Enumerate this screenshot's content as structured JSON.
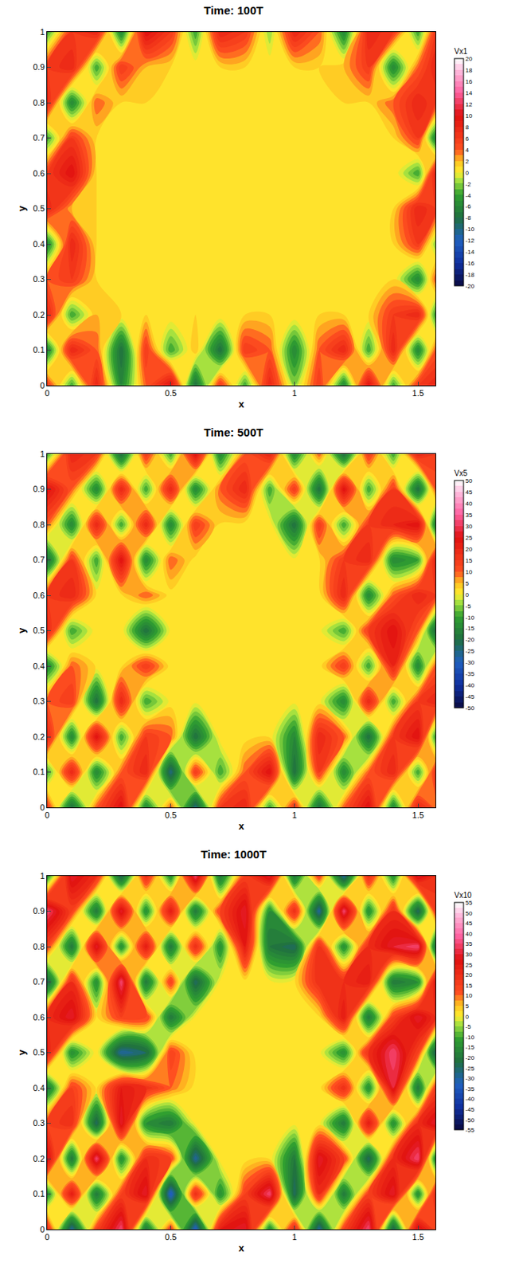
{
  "chart_data": [
    {
      "type": "contour",
      "title": "Time: 100T",
      "x_label": "x",
      "y_label": "y",
      "xlim": [
        0,
        1.57
      ],
      "ylim": [
        0,
        1
      ],
      "xticks": [
        0,
        0.5,
        1,
        1.5
      ],
      "yticks": [
        0,
        0.1,
        0.2,
        0.3,
        0.4,
        0.5,
        0.6,
        0.7,
        0.8,
        0.9,
        1
      ],
      "x": [
        0,
        0.1,
        0.2,
        0.3,
        0.4,
        0.5,
        0.6,
        0.7,
        0.8,
        0.9,
        1,
        1.1,
        1.2,
        1.3,
        1.4,
        1.5,
        1.57
      ],
      "y": [
        0,
        0.1,
        0.2,
        0.3,
        0.4,
        0.5,
        0.6,
        0.7,
        0.8,
        0.9,
        1
      ],
      "z": [
        [
          6,
          -4,
          8,
          -6,
          4,
          10,
          -8,
          6,
          -4,
          8,
          -2,
          6,
          -6,
          10,
          -4,
          6,
          8
        ],
        [
          -6,
          8,
          4,
          -8,
          6,
          -4,
          2,
          -8,
          6,
          4,
          -6,
          4,
          8,
          -4,
          8,
          -6,
          4
        ],
        [
          8,
          -4,
          2,
          1,
          1,
          1,
          1,
          1,
          1,
          1,
          1,
          1,
          1,
          1,
          6,
          8,
          -4
        ],
        [
          4,
          6,
          1,
          1,
          1,
          1,
          1,
          1,
          1,
          1,
          1,
          1,
          1,
          1,
          1,
          -6,
          4
        ],
        [
          -6,
          8,
          1,
          1,
          1,
          1,
          1,
          1,
          1,
          1,
          1,
          1,
          1,
          1,
          1,
          6,
          -2
        ],
        [
          8,
          2,
          1,
          1,
          1,
          1,
          1,
          1,
          1,
          1,
          1,
          1,
          1,
          1,
          1,
          8,
          6
        ],
        [
          6,
          10,
          1,
          1,
          1,
          1,
          1,
          1,
          1,
          1,
          1,
          1,
          1,
          1,
          1,
          -4,
          8
        ],
        [
          -4,
          6,
          1,
          1,
          1,
          1,
          1,
          1,
          1,
          1,
          1,
          1,
          1,
          1,
          1,
          6,
          -6
        ],
        [
          8,
          -6,
          4,
          1,
          1,
          1,
          1,
          1,
          1,
          1,
          1,
          1,
          1,
          1,
          4,
          8,
          6
        ],
        [
          6,
          8,
          -4,
          6,
          2,
          1,
          1,
          1,
          1,
          1,
          1,
          1,
          2,
          6,
          -6,
          4,
          8
        ],
        [
          -4,
          6,
          8,
          -6,
          10,
          6,
          -4,
          8,
          6,
          -2,
          8,
          4,
          -6,
          8,
          6,
          -4,
          6
        ]
      ],
      "colorbar": {
        "title": "Vx1",
        "range": [
          -20,
          20
        ],
        "ticks": [
          -20,
          -18,
          -16,
          -14,
          -12,
          -10,
          -8,
          -6,
          -4,
          -2,
          0,
          2,
          4,
          6,
          8,
          10,
          12,
          14,
          16,
          18,
          20
        ]
      }
    },
    {
      "type": "contour",
      "title": "Time: 500T",
      "x_label": "x",
      "y_label": "y",
      "xlim": [
        0,
        1.57
      ],
      "ylim": [
        0,
        1
      ],
      "xticks": [
        0,
        0.5,
        1,
        1.5
      ],
      "yticks": [
        0,
        0.1,
        0.2,
        0.3,
        0.4,
        0.5,
        0.6,
        0.7,
        0.8,
        0.9,
        1
      ],
      "x": [
        0,
        0.1,
        0.2,
        0.3,
        0.4,
        0.5,
        0.6,
        0.7,
        0.8,
        0.9,
        1,
        1.1,
        1.2,
        1.3,
        1.4,
        1.5,
        1.57
      ],
      "y": [
        0,
        0.1,
        0.2,
        0.3,
        0.4,
        0.5,
        0.6,
        0.7,
        0.8,
        0.9,
        1
      ],
      "z": [
        [
          15,
          -20,
          10,
          25,
          -15,
          10,
          -25,
          15,
          20,
          -10,
          15,
          -20,
          10,
          25,
          -15,
          20,
          10
        ],
        [
          -10,
          20,
          -15,
          10,
          20,
          -25,
          15,
          -10,
          10,
          25,
          -20,
          15,
          -15,
          10,
          20,
          -10,
          15
        ],
        [
          20,
          -15,
          25,
          -10,
          15,
          10,
          -20,
          2,
          1,
          2,
          -15,
          20,
          10,
          -20,
          15,
          25,
          -10
        ],
        [
          10,
          15,
          -20,
          20,
          -10,
          1,
          1,
          1,
          1,
          1,
          1,
          1,
          -15,
          20,
          -10,
          15,
          20
        ],
        [
          -15,
          10,
          2,
          2,
          15,
          1,
          1,
          1,
          1,
          1,
          1,
          1,
          15,
          -10,
          20,
          -15,
          10
        ],
        [
          20,
          -10,
          2,
          2,
          -20,
          1,
          1,
          1,
          1,
          1,
          1,
          1,
          -10,
          15,
          25,
          10,
          -20
        ],
        [
          15,
          20,
          2,
          2,
          10,
          1,
          1,
          1,
          1,
          1,
          1,
          1,
          20,
          -15,
          10,
          20,
          15
        ],
        [
          -20,
          15,
          -10,
          25,
          -15,
          10,
          1,
          1,
          1,
          1,
          1,
          2,
          15,
          20,
          -15,
          -10,
          20
        ],
        [
          10,
          -15,
          20,
          -10,
          20,
          -15,
          15,
          2,
          1,
          2,
          -20,
          15,
          -10,
          15,
          20,
          25,
          -15
        ],
        [
          25,
          10,
          -15,
          20,
          -10,
          20,
          -15,
          10,
          20,
          -10,
          15,
          -20,
          25,
          -10,
          15,
          -20,
          10
        ],
        [
          -10,
          20,
          15,
          -20,
          15,
          -10,
          25,
          -15,
          10,
          20,
          -15,
          10,
          -20,
          15,
          -10,
          20,
          15
        ]
      ],
      "colorbar": {
        "title": "Vx5",
        "range": [
          -50,
          50
        ],
        "ticks": [
          -50,
          -45,
          -40,
          -35,
          -30,
          -25,
          -20,
          -15,
          -10,
          -5,
          0,
          5,
          10,
          15,
          20,
          25,
          30,
          35,
          40,
          45,
          50
        ]
      }
    },
    {
      "type": "contour",
      "title": "Time: 1000T",
      "x_label": "x",
      "y_label": "y",
      "xlim": [
        0,
        1.57
      ],
      "ylim": [
        0,
        1
      ],
      "xticks": [
        0,
        0.5,
        1,
        1.5
      ],
      "yticks": [
        0,
        0.1,
        0.2,
        0.3,
        0.4,
        0.5,
        0.6,
        0.7,
        0.8,
        0.9,
        1
      ],
      "x": [
        0,
        0.1,
        0.2,
        0.3,
        0.4,
        0.5,
        0.6,
        0.7,
        0.8,
        0.9,
        1,
        1.1,
        1.2,
        1.3,
        1.4,
        1.5,
        1.57
      ],
      "y": [
        0,
        0.1,
        0.2,
        0.3,
        0.4,
        0.5,
        0.6,
        0.7,
        0.8,
        0.9,
        1
      ],
      "z": [
        [
          20,
          -30,
          15,
          35,
          -20,
          15,
          -35,
          25,
          30,
          -15,
          20,
          -30,
          15,
          35,
          -25,
          30,
          15
        ],
        [
          -15,
          25,
          -20,
          15,
          30,
          -35,
          20,
          -15,
          15,
          35,
          -25,
          20,
          -20,
          15,
          30,
          -15,
          20
        ],
        [
          30,
          -20,
          35,
          -15,
          20,
          15,
          -30,
          2,
          1,
          2,
          -20,
          30,
          15,
          -25,
          20,
          35,
          -15
        ],
        [
          15,
          20,
          -25,
          30,
          -15,
          -20,
          1,
          1,
          1,
          1,
          1,
          1,
          -20,
          25,
          -15,
          20,
          30
        ],
        [
          -20,
          15,
          2,
          25,
          20,
          10,
          1,
          1,
          1,
          1,
          1,
          1,
          20,
          -15,
          30,
          -20,
          15
        ],
        [
          25,
          -15,
          2,
          -30,
          -25,
          15,
          1,
          1,
          1,
          1,
          1,
          1,
          -15,
          20,
          35,
          15,
          -25
        ],
        [
          20,
          30,
          2,
          15,
          15,
          -20,
          1,
          1,
          1,
          1,
          1,
          2,
          25,
          -20,
          15,
          30,
          20
        ],
        [
          -25,
          20,
          -15,
          35,
          -20,
          15,
          -25,
          1,
          1,
          1,
          2,
          20,
          20,
          25,
          -20,
          -15,
          25
        ],
        [
          15,
          -20,
          30,
          -15,
          25,
          -20,
          20,
          -15,
          25,
          -20,
          -25,
          20,
          -15,
          20,
          30,
          35,
          -20
        ],
        [
          35,
          15,
          -20,
          30,
          -15,
          25,
          -20,
          15,
          30,
          -15,
          20,
          -30,
          35,
          -15,
          20,
          -25,
          15
        ],
        [
          -15,
          30,
          20,
          -25,
          20,
          -15,
          35,
          -20,
          15,
          30,
          -20,
          15,
          -30,
          20,
          -15,
          30,
          20
        ]
      ],
      "colorbar": {
        "title": "Vx10",
        "range": [
          -55,
          55
        ],
        "ticks": [
          -55,
          -50,
          -45,
          -40,
          -35,
          -30,
          -25,
          -20,
          -15,
          -10,
          -5,
          0,
          5,
          10,
          15,
          20,
          25,
          30,
          35,
          40,
          45,
          50,
          55
        ]
      }
    }
  ]
}
